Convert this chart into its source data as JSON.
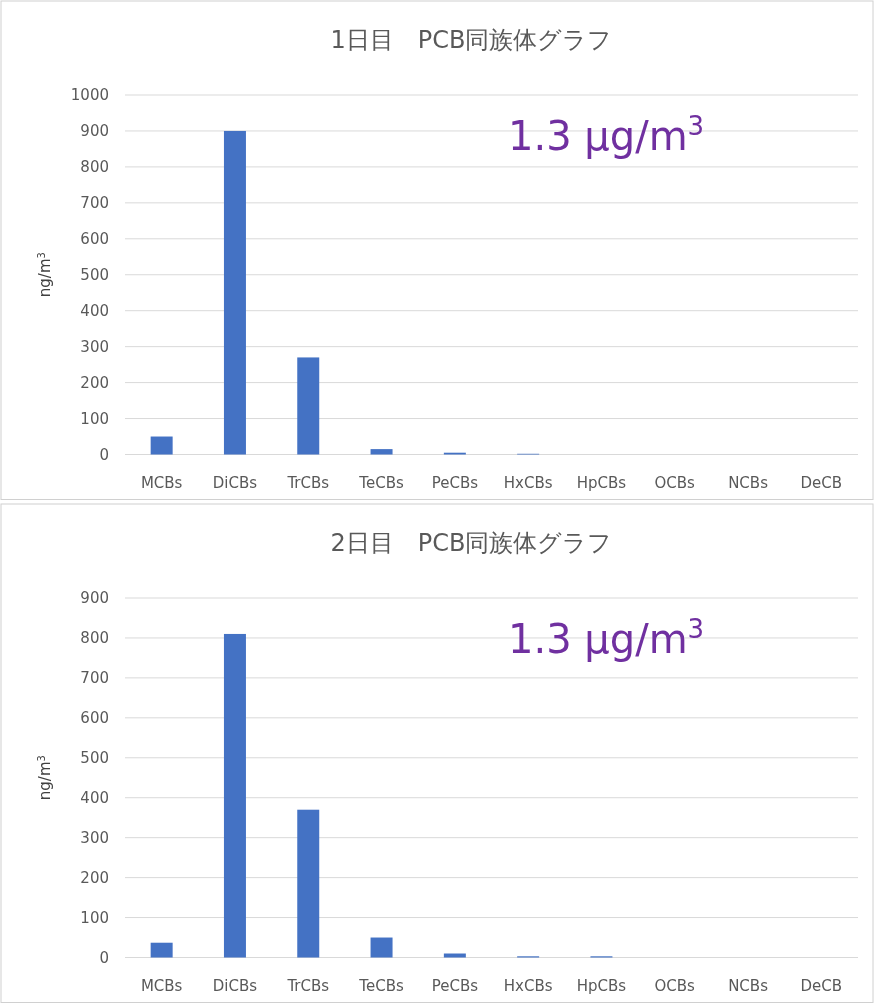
{
  "chart_data": [
    {
      "type": "bar",
      "title": "1日目　PCB同族体グラフ",
      "ylabel": "ng/m$^{3}$",
      "categories": [
        "MCBs",
        "DiCBs",
        "TrCBs",
        "TeCBs",
        "PeCBs",
        "HxCBs",
        "HpCBs",
        "OCBs",
        "NCBs",
        "DeCB"
      ],
      "values": [
        50,
        900,
        270,
        15,
        5,
        2,
        0,
        0,
        0,
        0
      ],
      "color": "#4472c4",
      "ylim": [
        0,
        1000
      ],
      "yticks": [
        0,
        100,
        200,
        300,
        400,
        500,
        600,
        700,
        800,
        900,
        1000
      ],
      "grid": "y",
      "annotations": [
        "1.3 μg/m$^{3}$"
      ]
    },
    {
      "type": "bar",
      "title": "2日目　PCB同族体グラフ",
      "ylabel": "ng/m$^{3}$",
      "categories": [
        "MCBs",
        "DiCBs",
        "TrCBs",
        "TeCBs",
        "PeCBs",
        "HxCBs",
        "HpCBs",
        "OCBs",
        "NCBs",
        "DeCB"
      ],
      "values": [
        37,
        810,
        370,
        50,
        10,
        3,
        3,
        0,
        0,
        0
      ],
      "color": "#4472c4",
      "ylim": [
        0,
        900
      ],
      "yticks": [
        0,
        100,
        200,
        300,
        400,
        500,
        600,
        700,
        800,
        900
      ],
      "grid": "y",
      "annotations": [
        "1.3 μg/m$^{3}$"
      ]
    }
  ]
}
